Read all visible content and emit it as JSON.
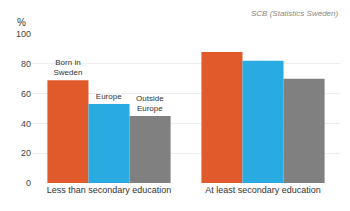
{
  "chart_data": {
    "type": "bar",
    "categories": [
      "Less than secondary education",
      "At least secondary education"
    ],
    "series": [
      {
        "color": "#E05A2B",
        "values": [
          69,
          88
        ]
      },
      {
        "color": "#29ABE2",
        "values": [
          53,
          82
        ]
      },
      {
        "color": "#808080",
        "values": [
          45,
          70
        ]
      }
    ],
    "annotations": [
      {
        "text": "Born in\nSweden",
        "series": 0,
        "category": "Less than secondary education"
      },
      {
        "text": "Europe",
        "series": 1,
        "category": "Less than secondary education"
      },
      {
        "text": "Outside\nEurope",
        "series": 2,
        "category": "Less than secondary education"
      },
      {
        "text": "SCB (Statistics Sweden)"
      }
    ],
    "ylabel": "%",
    "ylim": [
      0,
      100
    ],
    "yticks": [
      0,
      20,
      40,
      60,
      80,
      100
    ],
    "grid": true
  }
}
